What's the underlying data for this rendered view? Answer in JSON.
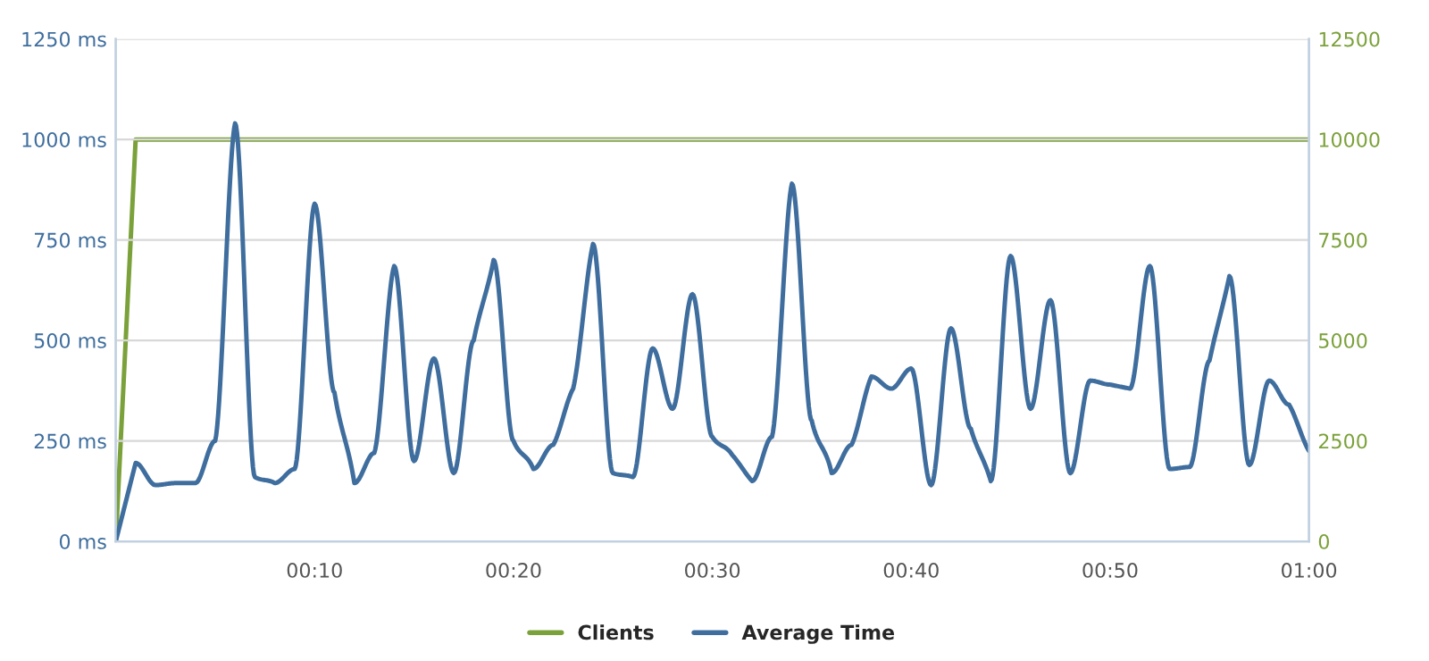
{
  "chart_data": {
    "type": "line",
    "x": [
      0,
      1,
      2,
      3,
      4,
      5,
      6,
      7,
      8,
      9,
      10,
      11,
      12,
      13,
      14,
      15,
      16,
      17,
      18,
      19,
      20,
      21,
      22,
      23,
      24,
      25,
      26,
      27,
      28,
      29,
      30,
      31,
      32,
      33,
      34,
      35,
      36,
      37,
      38,
      39,
      40,
      41,
      42,
      43,
      44,
      45,
      46,
      47,
      48,
      49,
      50,
      51,
      52,
      53,
      54,
      55,
      56,
      57,
      58,
      59,
      60
    ],
    "series": [
      {
        "name": "Clients",
        "color": "#7ba13a",
        "axis": "y2",
        "x": [
          0,
          1,
          60
        ],
        "values": [
          0,
          10000,
          10000
        ]
      },
      {
        "name": "Average Time",
        "color": "#3f6e9e",
        "axis": "y",
        "values": [
          0,
          195,
          140,
          145,
          145,
          250,
          1040,
          160,
          145,
          180,
          840,
          370,
          145,
          220,
          685,
          200,
          455,
          170,
          500,
          700,
          250,
          180,
          240,
          380,
          740,
          170,
          160,
          480,
          330,
          615,
          260,
          215,
          150,
          260,
          890,
          300,
          170,
          240,
          410,
          380,
          430,
          140,
          530,
          280,
          150,
          710,
          330,
          600,
          170,
          400,
          390,
          380,
          685,
          180,
          185,
          450,
          660,
          190,
          400,
          340,
          225
        ]
      }
    ],
    "xlim": [
      0,
      60
    ],
    "xticks": [
      {
        "value": 10,
        "label": "00:10"
      },
      {
        "value": 20,
        "label": "00:20"
      },
      {
        "value": 30,
        "label": "00:30"
      },
      {
        "value": 40,
        "label": "00:40"
      },
      {
        "value": 50,
        "label": "00:50"
      },
      {
        "value": 60,
        "label": "01:00"
      }
    ],
    "ylim": [
      0,
      1250
    ],
    "yticks": [
      {
        "value": 0,
        "label": "0 ms"
      },
      {
        "value": 250,
        "label": "250 ms"
      },
      {
        "value": 500,
        "label": "500 ms"
      },
      {
        "value": 750,
        "label": "750 ms"
      },
      {
        "value": 1000,
        "label": "1000 ms"
      },
      {
        "value": 1250,
        "label": "1250 ms"
      }
    ],
    "y2lim": [
      0,
      12500
    ],
    "y2ticks": [
      0,
      2500,
      5000,
      7500,
      10000,
      12500
    ],
    "grid": "y",
    "legend": "bottom",
    "marker": "none",
    "line_style": "solid"
  }
}
